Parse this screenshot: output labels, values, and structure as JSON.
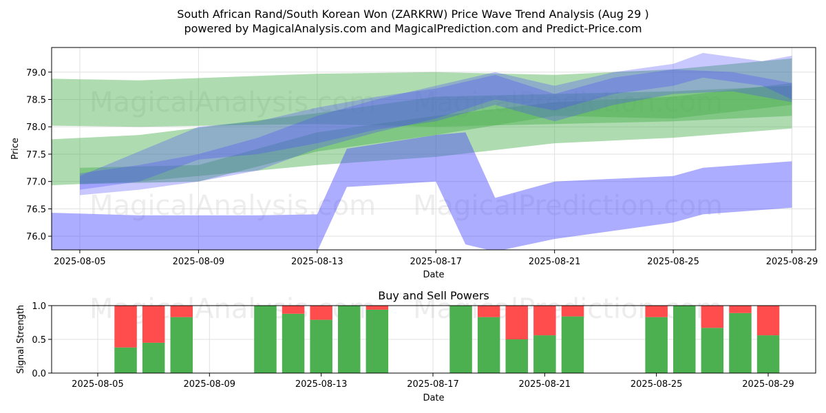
{
  "page": {
    "title": "South African Rand/South Korean Won (ZARKRW) Price Wave Trend Analysis (Aug 29 )",
    "subtitle": "powered by MagicalAnalysis.com and MagicalPrediction.com and Predict-Price.com",
    "watermarks": [
      "MagicalAnalysis.com",
      "MagicalPrediction.com"
    ]
  },
  "colors": {
    "green_band": "#4caf50",
    "blue_band": "#4a4aff",
    "buy": "#4caf50",
    "sell": "#ff4d4d",
    "grid": "#e0e0e0"
  },
  "chart_data": [
    {
      "type": "area",
      "title": "",
      "xlabel": "Date",
      "ylabel": "Price",
      "x_ticks": [
        "2025-08-05",
        "2025-08-09",
        "2025-08-13",
        "2025-08-17",
        "2025-08-21",
        "2025-08-25",
        "2025-08-29"
      ],
      "y_ticks": [
        76.0,
        76.5,
        77.0,
        77.5,
        78.0,
        78.5,
        79.0
      ],
      "xlim": [
        "2025-08-04",
        "2025-08-30"
      ],
      "ylim": [
        75.75,
        79.45
      ],
      "grid": true,
      "series": [
        {
          "color": "green",
          "x": [
            "2025-08-04",
            "2025-08-07",
            "2025-08-13",
            "2025-08-17",
            "2025-08-21",
            "2025-08-25",
            "2025-08-29"
          ],
          "upper": [
            78.88,
            78.85,
            78.97,
            79.0,
            78.95,
            79.05,
            79.25
          ],
          "lower": [
            78.02,
            78.0,
            78.05,
            78.0,
            78.05,
            78.1,
            78.2
          ]
        },
        {
          "color": "green",
          "x": [
            "2025-08-04",
            "2025-08-07",
            "2025-08-13",
            "2025-08-17",
            "2025-08-21",
            "2025-08-25",
            "2025-08-29"
          ],
          "upper": [
            77.77,
            77.85,
            78.25,
            78.55,
            78.6,
            78.65,
            78.75
          ],
          "lower": [
            76.93,
            77.0,
            77.3,
            77.45,
            77.7,
            77.8,
            77.97
          ]
        },
        {
          "color": "green",
          "x": [
            "2025-08-05",
            "2025-08-09",
            "2025-08-13",
            "2025-08-17",
            "2025-08-21",
            "2025-08-25",
            "2025-08-29"
          ],
          "upper": [
            77.25,
            77.3,
            77.9,
            78.2,
            78.45,
            78.55,
            78.8
          ],
          "lower": [
            76.95,
            77.0,
            77.55,
            77.85,
            78.2,
            78.15,
            78.4
          ]
        },
        {
          "color": "blue",
          "x": [
            "2025-08-04",
            "2025-08-07",
            "2025-08-11",
            "2025-08-13",
            "2025-08-14",
            "2025-08-17",
            "2025-08-18",
            "2025-08-19",
            "2025-08-21",
            "2025-08-25",
            "2025-08-26",
            "2025-08-29"
          ],
          "upper": [
            76.43,
            76.38,
            76.38,
            76.4,
            77.6,
            77.85,
            77.9,
            76.7,
            77.0,
            77.1,
            77.25,
            77.37
          ],
          "lower": [
            75.72,
            75.72,
            75.72,
            75.72,
            76.9,
            77.0,
            75.85,
            75.72,
            75.95,
            76.25,
            76.4,
            76.52
          ]
        },
        {
          "color": "blue",
          "x": [
            "2025-08-05",
            "2025-08-07",
            "2025-08-09",
            "2025-08-11",
            "2025-08-13",
            "2025-08-15",
            "2025-08-17",
            "2025-08-19",
            "2025-08-21",
            "2025-08-23",
            "2025-08-25",
            "2025-08-27",
            "2025-08-29"
          ],
          "upper": [
            77.1,
            77.55,
            78.0,
            78.1,
            78.35,
            78.55,
            78.7,
            78.95,
            78.6,
            78.9,
            79.05,
            79.0,
            78.8
          ],
          "lower": [
            76.85,
            77.0,
            77.4,
            77.5,
            77.7,
            77.95,
            78.1,
            78.4,
            78.1,
            78.4,
            78.6,
            78.65,
            78.45
          ]
        },
        {
          "color": "blue",
          "x": [
            "2025-08-05",
            "2025-08-07",
            "2025-08-09",
            "2025-08-11",
            "2025-08-13",
            "2025-08-15",
            "2025-08-17",
            "2025-08-19",
            "2025-08-21",
            "2025-08-23",
            "2025-08-25",
            "2025-08-26",
            "2025-08-28",
            "2025-08-29"
          ],
          "upper": [
            77.15,
            77.3,
            77.5,
            77.8,
            78.2,
            78.5,
            78.75,
            79.0,
            78.75,
            79.0,
            79.15,
            79.35,
            79.2,
            79.3
          ],
          "lower": [
            76.75,
            76.85,
            77.0,
            77.2,
            77.6,
            77.9,
            78.15,
            78.5,
            78.3,
            78.6,
            78.75,
            78.9,
            78.75,
            78.5
          ]
        }
      ]
    },
    {
      "type": "bar",
      "title": "Buy and Sell Powers",
      "xlabel": "Date",
      "ylabel": "Signal Strength",
      "x_ticks": [
        "2025-08-05",
        "2025-08-09",
        "2025-08-13",
        "2025-08-17",
        "2025-08-21",
        "2025-08-25",
        "2025-08-29"
      ],
      "y_ticks": [
        0.0,
        0.5,
        1.0
      ],
      "ylim": [
        0,
        1.0
      ],
      "xlim": [
        "2025-08-04",
        "2025-08-30"
      ],
      "grid": true,
      "categories": [
        "2025-08-06",
        "2025-08-07",
        "2025-08-08",
        "2025-08-11",
        "2025-08-12",
        "2025-08-13",
        "2025-08-14",
        "2025-08-15",
        "2025-08-18",
        "2025-08-19",
        "2025-08-20",
        "2025-08-21",
        "2025-08-22",
        "2025-08-25",
        "2025-08-26",
        "2025-08-27",
        "2025-08-28",
        "2025-08-29"
      ],
      "series": [
        {
          "name": "Buy",
          "values": [
            0.38,
            0.45,
            0.83,
            1.0,
            0.88,
            0.79,
            1.0,
            0.94,
            1.0,
            0.83,
            0.5,
            0.56,
            0.84,
            0.83,
            1.0,
            0.67,
            0.89,
            0.56
          ]
        },
        {
          "name": "Sell",
          "values": [
            0.62,
            0.55,
            0.17,
            0.0,
            0.12,
            0.21,
            0.0,
            0.06,
            0.0,
            0.17,
            0.5,
            0.44,
            0.16,
            0.17,
            0.0,
            0.33,
            0.11,
            0.44
          ]
        }
      ]
    }
  ]
}
